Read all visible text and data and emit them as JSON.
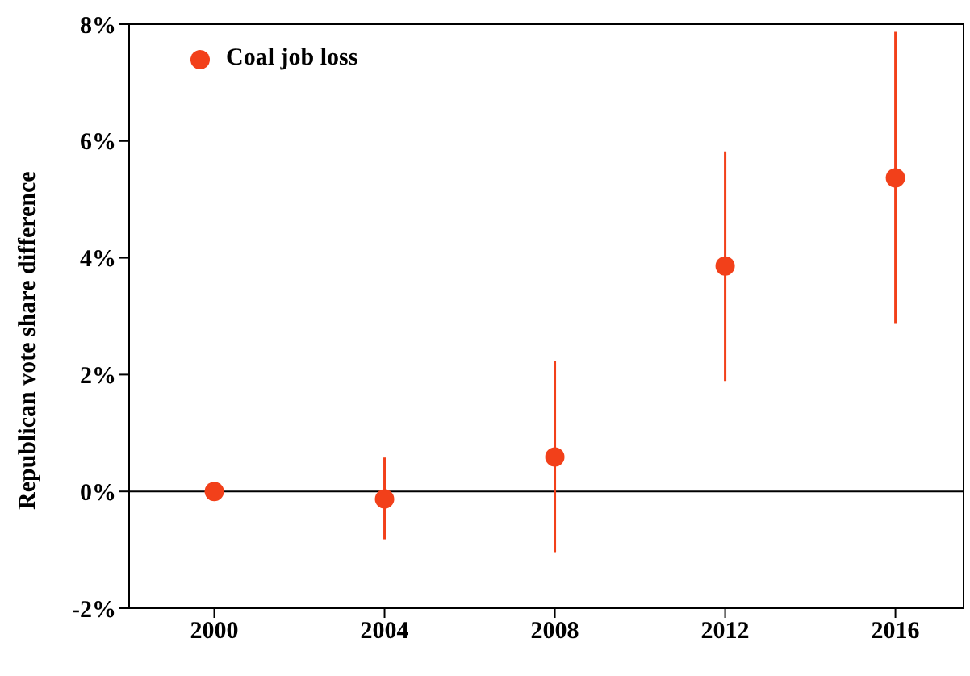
{
  "chart_data": {
    "type": "scatter",
    "ylabel": "Republican vote share difference",
    "x": [
      2000,
      2004,
      2008,
      2012,
      2016
    ],
    "series": [
      {
        "name": "Coal job loss",
        "color": "#f2401a",
        "values": [
          0,
          -0.13,
          0.59,
          3.86,
          5.37
        ],
        "errors": [
          null,
          [
            -0.82,
            0.58
          ],
          [
            -1.04,
            2.23
          ],
          [
            1.89,
            5.82
          ],
          [
            2.87,
            7.87
          ]
        ]
      }
    ],
    "xlim": [
      1998,
      2017.6
    ],
    "xticks": [
      2000,
      2004,
      2008,
      2012,
      2016
    ],
    "ylim": [
      -2,
      8
    ],
    "yticks": [
      {
        "value": -2,
        "label": "-2%"
      },
      {
        "value": 0,
        "label": "0%"
      },
      {
        "value": 2,
        "label": "2%"
      },
      {
        "value": 4,
        "label": "4%"
      },
      {
        "value": 6,
        "label": "6%"
      },
      {
        "value": 8,
        "label": "8%"
      }
    ],
    "ref_lines": [
      {
        "axis": "y",
        "value": 0,
        "color": "#000000"
      }
    ],
    "legend": "top left",
    "marker": "circle",
    "grid": false
  }
}
